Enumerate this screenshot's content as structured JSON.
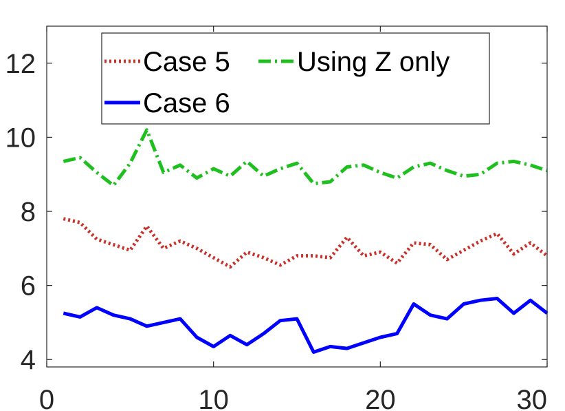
{
  "chart_data": {
    "type": "line",
    "title": "",
    "xlabel": "",
    "ylabel": "",
    "xlim": [
      0,
      30
    ],
    "ylim": [
      3.8,
      13
    ],
    "xticks": [
      "0",
      "10",
      "20",
      "30"
    ],
    "yticks": [
      "4",
      "6",
      "8",
      "10",
      "12"
    ],
    "grid": false,
    "legend": "top-center",
    "x": [
      1,
      2,
      3,
      4,
      5,
      6,
      7,
      8,
      9,
      10,
      11,
      12,
      13,
      14,
      15,
      16,
      17,
      18,
      19,
      20,
      21,
      22,
      23,
      24,
      25,
      26,
      27,
      28,
      29,
      30
    ],
    "series": [
      {
        "name": "Case 5",
        "color": "#c8322d",
        "style": "dotted",
        "values": [
          7.8,
          7.7,
          7.25,
          7.1,
          6.95,
          7.6,
          7.0,
          7.2,
          7.0,
          6.75,
          6.5,
          6.9,
          6.75,
          6.55,
          6.8,
          6.8,
          6.75,
          7.3,
          6.8,
          6.9,
          6.6,
          7.15,
          7.1,
          6.7,
          6.95,
          7.2,
          7.4,
          6.85,
          7.15,
          6.8
        ]
      },
      {
        "name": "Using Z only",
        "color": "#1fbf1f",
        "style": "dashdot",
        "values": [
          9.35,
          9.45,
          9.05,
          8.7,
          9.3,
          10.2,
          9.05,
          9.25,
          8.9,
          9.15,
          8.95,
          9.35,
          8.95,
          9.15,
          9.3,
          8.75,
          8.8,
          9.2,
          9.25,
          9.05,
          8.9,
          9.2,
          9.3,
          9.1,
          8.95,
          9.0,
          9.3,
          9.35,
          9.25,
          9.1
        ]
      },
      {
        "name": "Case 6",
        "color": "#0000ff",
        "style": "solid",
        "values": [
          5.25,
          5.15,
          5.4,
          5.2,
          5.1,
          4.9,
          5.0,
          5.1,
          4.6,
          4.35,
          4.65,
          4.4,
          4.7,
          5.05,
          5.1,
          4.2,
          4.35,
          4.3,
          4.45,
          4.6,
          4.7,
          5.5,
          5.2,
          5.1,
          5.5,
          5.6,
          5.65,
          5.25,
          5.6,
          5.25
        ]
      }
    ]
  }
}
